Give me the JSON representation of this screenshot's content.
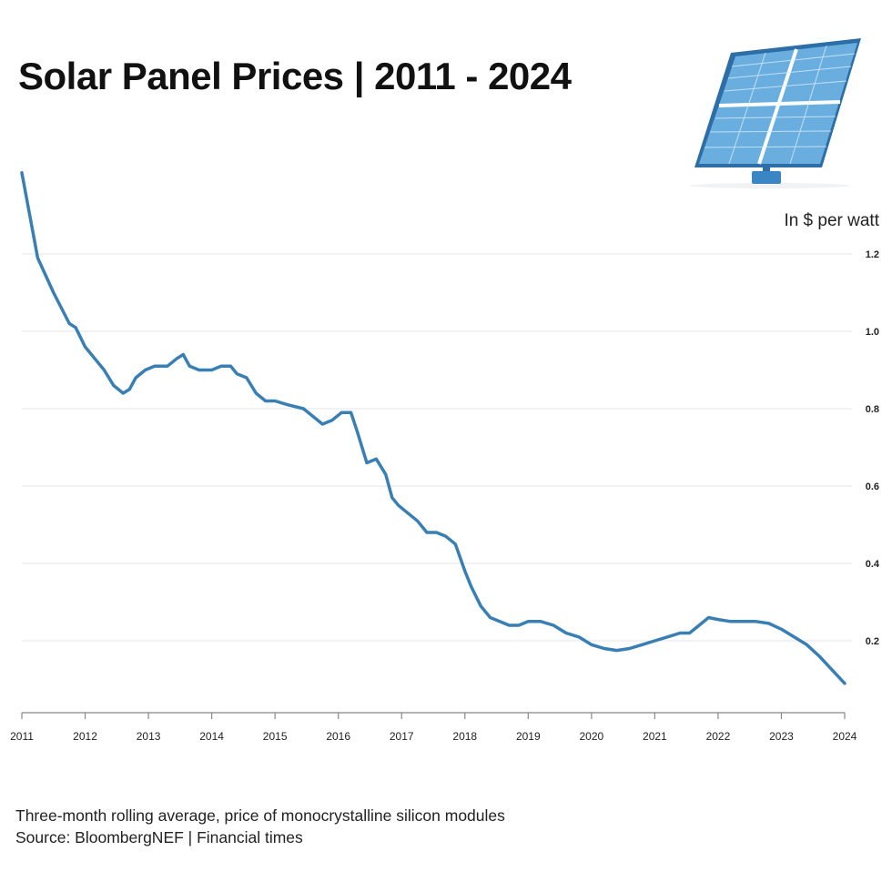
{
  "title": "Solar Panel Prices | 2011 - 2024",
  "unit_label": "In $ per watt",
  "footer": {
    "note": "Three-month rolling average, price of monocrystalline silicon modules",
    "source": "Source: BloombergNEF | Financial times"
  },
  "colors": {
    "line": "#3a7fb4",
    "grid": "#e6e6e6",
    "axis": "#888888"
  },
  "icon": "solar-panel-icon",
  "chart_data": {
    "type": "line",
    "title": "Solar Panel Prices | 2011 - 2024",
    "ylabel": "In $ per watt",
    "xlabel": "",
    "xlim": [
      2011,
      2024
    ],
    "ylim": [
      0.05,
      1.2
    ],
    "x_ticks": [
      "2011",
      "2012",
      "2013",
      "2014",
      "2015",
      "2016",
      "2017",
      "2018",
      "2019",
      "2020",
      "2021",
      "2022",
      "2023",
      "2024"
    ],
    "y_ticks": [
      "0.2",
      "0.4",
      "0.6",
      "0.8",
      "1.0",
      "1.2"
    ],
    "y_tick_values": [
      0.2,
      0.4,
      0.6,
      0.8,
      1.0,
      1.2
    ],
    "grid": true,
    "series": [
      {
        "name": "",
        "x": [
          2011.0,
          2011.25,
          2011.5,
          2011.75,
          2011.85,
          2012.0,
          2012.15,
          2012.3,
          2012.45,
          2012.6,
          2012.7,
          2012.8,
          2012.95,
          2013.1,
          2013.3,
          2013.45,
          2013.55,
          2013.65,
          2013.8,
          2014.0,
          2014.15,
          2014.3,
          2014.4,
          2014.55,
          2014.7,
          2014.85,
          2015.0,
          2015.2,
          2015.45,
          2015.6,
          2015.75,
          2015.9,
          2016.05,
          2016.2,
          2016.3,
          2016.45,
          2016.6,
          2016.75,
          2016.85,
          2016.95,
          2017.1,
          2017.25,
          2017.4,
          2017.55,
          2017.7,
          2017.85,
          2018.0,
          2018.1,
          2018.25,
          2018.4,
          2018.55,
          2018.7,
          2018.85,
          2019.0,
          2019.2,
          2019.4,
          2019.6,
          2019.8,
          2020.0,
          2020.2,
          2020.4,
          2020.6,
          2020.8,
          2021.0,
          2021.2,
          2021.4,
          2021.55,
          2021.7,
          2021.85,
          2022.0,
          2022.2,
          2022.4,
          2022.6,
          2022.8,
          2023.0,
          2023.2,
          2023.4,
          2023.6,
          2023.8,
          2024.0
        ],
        "values": [
          1.41,
          1.19,
          1.1,
          1.02,
          1.01,
          0.96,
          0.93,
          0.9,
          0.86,
          0.84,
          0.85,
          0.88,
          0.9,
          0.91,
          0.91,
          0.93,
          0.94,
          0.91,
          0.9,
          0.9,
          0.91,
          0.91,
          0.89,
          0.88,
          0.84,
          0.82,
          0.82,
          0.81,
          0.8,
          0.78,
          0.76,
          0.77,
          0.79,
          0.79,
          0.74,
          0.66,
          0.67,
          0.63,
          0.57,
          0.55,
          0.53,
          0.51,
          0.48,
          0.48,
          0.47,
          0.45,
          0.38,
          0.34,
          0.29,
          0.26,
          0.25,
          0.24,
          0.24,
          0.25,
          0.25,
          0.24,
          0.22,
          0.21,
          0.19,
          0.18,
          0.175,
          0.18,
          0.19,
          0.2,
          0.21,
          0.22,
          0.22,
          0.24,
          0.26,
          0.255,
          0.25,
          0.25,
          0.25,
          0.245,
          0.23,
          0.21,
          0.19,
          0.16,
          0.125,
          0.09
        ]
      }
    ]
  }
}
